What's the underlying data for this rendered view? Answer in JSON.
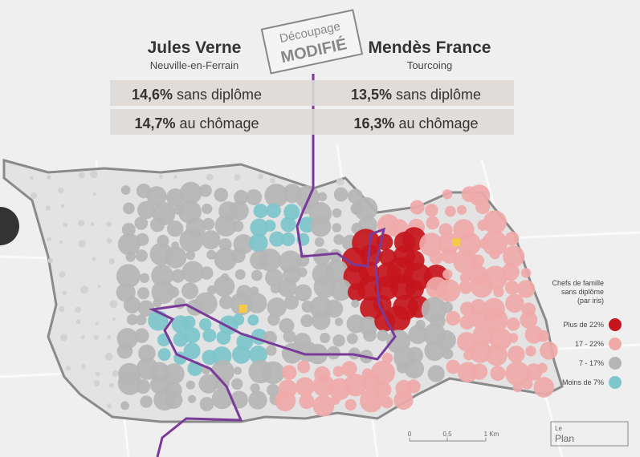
{
  "header": {
    "left": {
      "title": "Jules Verne",
      "subtitle": "Neuville-en-Ferrain",
      "stats": [
        {
          "value": "14,6%",
          "label": "sans diplôme"
        },
        {
          "value": "14,7%",
          "label": "au chômage"
        }
      ]
    },
    "right": {
      "title": "Mendès France",
      "subtitle": "Tourcoing",
      "stats": [
        {
          "value": "13,5%",
          "label": "sans diplôme"
        },
        {
          "value": "16,3%",
          "label": "au chômage"
        }
      ]
    },
    "stamp": {
      "line1": "Découpage",
      "line2": "MODIFIÉ"
    }
  },
  "legend": {
    "title": [
      "Chefs de famille",
      "sans diplôme",
      "(par iris)"
    ],
    "items": [
      {
        "label": "Plus de 22%",
        "color": "#c4161c"
      },
      {
        "label": "17 - 22%",
        "color": "#f0a9a9"
      },
      {
        "label": "7 - 17%",
        "color": "#b5b5b5"
      },
      {
        "label": "Moins de 7%",
        "color": "#7cc6cc"
      }
    ]
  },
  "scale": {
    "labels": [
      "0",
      "0,5",
      "1 Km"
    ]
  },
  "logo": {
    "text": [
      "Le",
      "Plan"
    ]
  }
}
